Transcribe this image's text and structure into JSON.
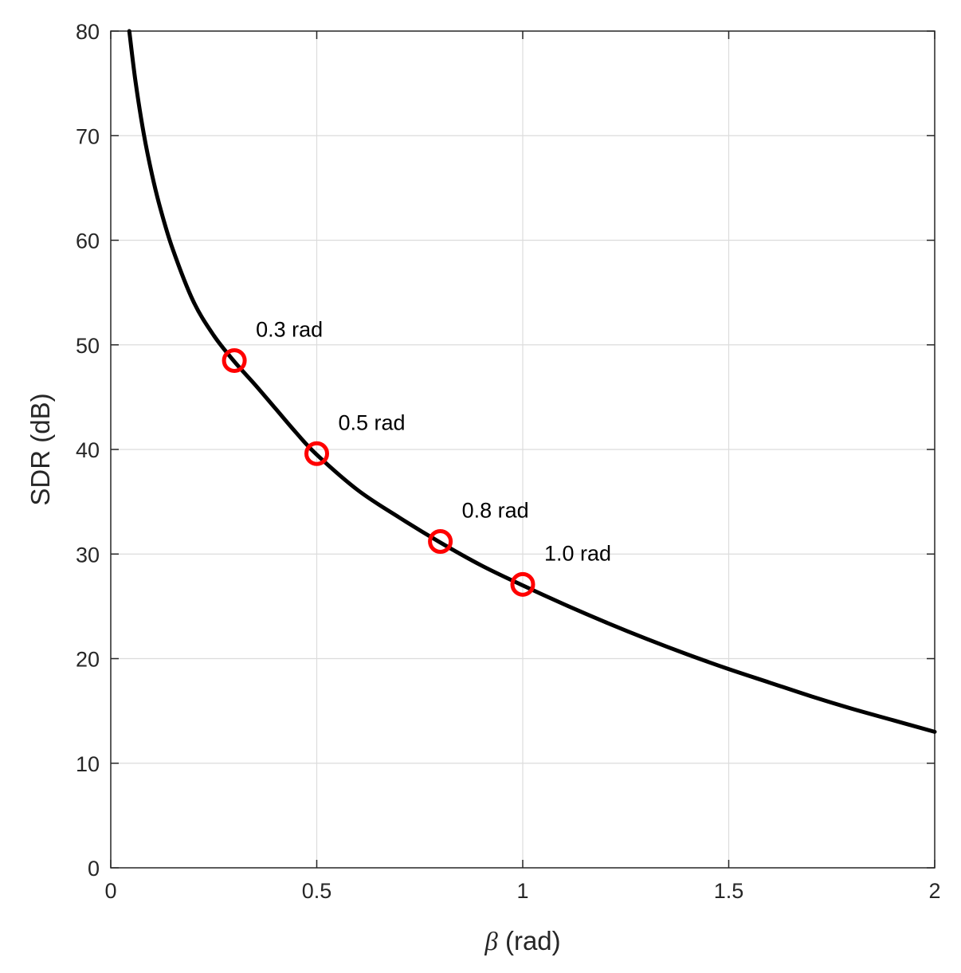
{
  "chart_data": {
    "type": "line",
    "title": "",
    "xlabel_symbol": "β",
    "xlabel_unit": " (rad)",
    "ylabel": "SDR (dB)",
    "xlim": [
      0,
      2
    ],
    "ylim": [
      0,
      80
    ],
    "xticks": [
      0,
      0.5,
      1,
      1.5,
      2
    ],
    "xtick_labels": [
      "0",
      "0.5",
      "1",
      "1.5",
      "2"
    ],
    "yticks": [
      0,
      10,
      20,
      30,
      40,
      50,
      60,
      70,
      80
    ],
    "ytick_labels": [
      "0",
      "10",
      "20",
      "30",
      "40",
      "50",
      "60",
      "70",
      "80"
    ],
    "grid": true,
    "line_color": "#000000",
    "marker_color": "#ff0000",
    "series": [
      {
        "x": [
          0.045,
          0.06,
          0.08,
          0.1,
          0.12,
          0.15,
          0.2,
          0.25,
          0.3,
          0.35,
          0.4,
          0.45,
          0.5,
          0.6,
          0.7,
          0.8,
          0.9,
          1.0,
          1.1,
          1.2,
          1.3,
          1.4,
          1.5,
          1.6,
          1.7,
          1.8,
          1.9,
          2.0
        ],
        "y": [
          80,
          75.2,
          70.2,
          66.3,
          63.1,
          59.2,
          54.2,
          50.9,
          48.4,
          46.2,
          43.9,
          41.6,
          39.5,
          36.1,
          33.5,
          31.1,
          28.9,
          27.0,
          25.2,
          23.5,
          21.9,
          20.4,
          19.0,
          17.7,
          16.4,
          15.2,
          14.1,
          13.0
        ]
      }
    ],
    "markers": [
      {
        "x": 0.3,
        "y": 48.5,
        "label": "0.3 rad"
      },
      {
        "x": 0.5,
        "y": 39.6,
        "label": "0.5 rad"
      },
      {
        "x": 0.8,
        "y": 31.2,
        "label": "0.8 rad"
      },
      {
        "x": 1.0,
        "y": 27.1,
        "label": "1.0 rad"
      }
    ]
  }
}
